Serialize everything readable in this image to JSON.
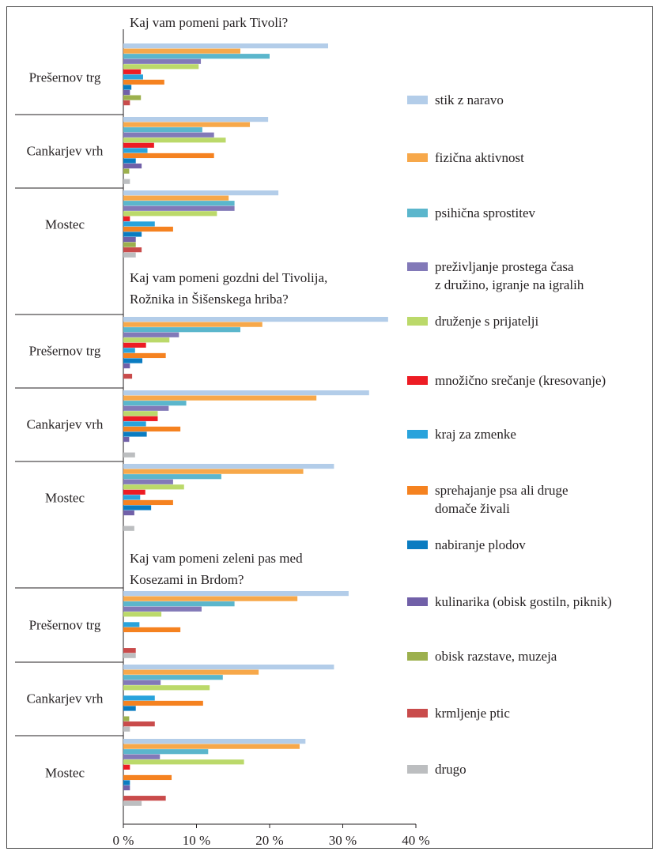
{
  "chart_data": {
    "type": "bar",
    "orientation": "horizontal",
    "xlim": [
      0,
      40
    ],
    "x_ticks": [
      "0 %",
      "10 %",
      "20 %",
      "30 %",
      "40 %"
    ],
    "grid": false,
    "legend_position": "right",
    "legend": [
      {
        "name": "stik z naravo",
        "color": "#b3cde9"
      },
      {
        "name": "fizična aktivnost",
        "color": "#f7a84a"
      },
      {
        "name": "psihična sprostitev",
        "color": "#5bb6cc"
      },
      {
        "name": "preživljanje prostega časa z družino, igranje na igralih",
        "lines": [
          "preživljanje prostega časa",
          "z družino, igranje na igralih"
        ],
        "color": "#8279b8"
      },
      {
        "name": "druženje s prijatelji",
        "color": "#bbd96a"
      },
      {
        "name": "množično srečanje (kresovanje)",
        "color": "#ed1c24"
      },
      {
        "name": "kraj za zmenke",
        "color": "#29a3dc"
      },
      {
        "name": "sprehajanje psa ali druge domače živali",
        "lines": [
          "sprehajanje psa ali druge",
          "domače živali"
        ],
        "color": "#f58220"
      },
      {
        "name": "nabiranje plodov",
        "color": "#0a7cc1"
      },
      {
        "name": "kulinarika (obisk gostiln, piknik)",
        "color": "#7160a8"
      },
      {
        "name": "obisk razstave, muzeja",
        "color": "#9cb04d"
      },
      {
        "name": "krmljenje ptic",
        "color": "#c94b4b"
      },
      {
        "name": "drugo",
        "color": "#bcbec0"
      }
    ],
    "panels": [
      {
        "title": "Kaj vam pomeni park Tivoli?",
        "title_lines": [
          "Kaj vam pomeni park Tivoli?"
        ],
        "groups": [
          {
            "label": "Prešernov trg",
            "values": [
              28,
              16,
              20,
              10.6,
              10.3,
              2.4,
              2.7,
              5.6,
              1.1,
              0.9,
              2.4,
              0.9,
              0
            ]
          },
          {
            "label": "Cankarjev vrh",
            "values": [
              19.8,
              17.3,
              10.8,
              12.4,
              14,
              4.2,
              3.3,
              12.4,
              1.7,
              2.5,
              0.8,
              0,
              0.9
            ]
          },
          {
            "label": "Mostec",
            "values": [
              21.2,
              14.4,
              15.2,
              15.2,
              12.8,
              0.9,
              4.3,
              6.8,
              2.5,
              1.7,
              1.7,
              2.5,
              1.7
            ]
          }
        ]
      },
      {
        "title": "Kaj vam pomeni gozdni del Tivolija, Rožnika in Šišenskega hriba?",
        "title_lines": [
          "Kaj vam pomeni gozdni del Tivolija,",
          "Rožnika in Šišenskega hriba?"
        ],
        "groups": [
          {
            "label": "Prešernov trg",
            "values": [
              36.2,
              19,
              16,
              7.6,
              6.3,
              3.1,
              1.6,
              5.8,
              2.6,
              0.9,
              0,
              1.2,
              0
            ]
          },
          {
            "label": "Cankarjev vrh",
            "values": [
              33.6,
              26.4,
              8.6,
              6.2,
              4.7,
              4.7,
              3.1,
              7.8,
              3.2,
              0.8,
              0,
              0,
              1.6
            ]
          },
          {
            "label": "Mostec",
            "values": [
              28.8,
              24.6,
              13.4,
              6.8,
              8.3,
              3,
              2.3,
              6.8,
              3.8,
              1.5,
              0,
              0,
              1.5
            ]
          }
        ]
      },
      {
        "title": "Kaj vam pomeni zeleni pas med Kosezami in Brdom?",
        "title_lines": [
          "Kaj vam pomeni zeleni pas med",
          "Kosezami in Brdom?"
        ],
        "groups": [
          {
            "label": "Prešernov trg",
            "values": [
              30.8,
              23.8,
              15.2,
              10.7,
              5.2,
              0,
              2.2,
              7.8,
              0,
              0,
              0,
              1.7,
              1.7
            ]
          },
          {
            "label": "Cankarjev vrh",
            "values": [
              28.8,
              18.5,
              13.6,
              5.1,
              11.8,
              0,
              4.3,
              10.9,
              1.7,
              0,
              0.8,
              4.3,
              0.9
            ]
          },
          {
            "label": "Mostec",
            "values": [
              24.9,
              24.1,
              11.6,
              5,
              16.5,
              0.9,
              0,
              6.6,
              0.9,
              0.9,
              0,
              5.8,
              2.5
            ]
          }
        ]
      }
    ]
  }
}
